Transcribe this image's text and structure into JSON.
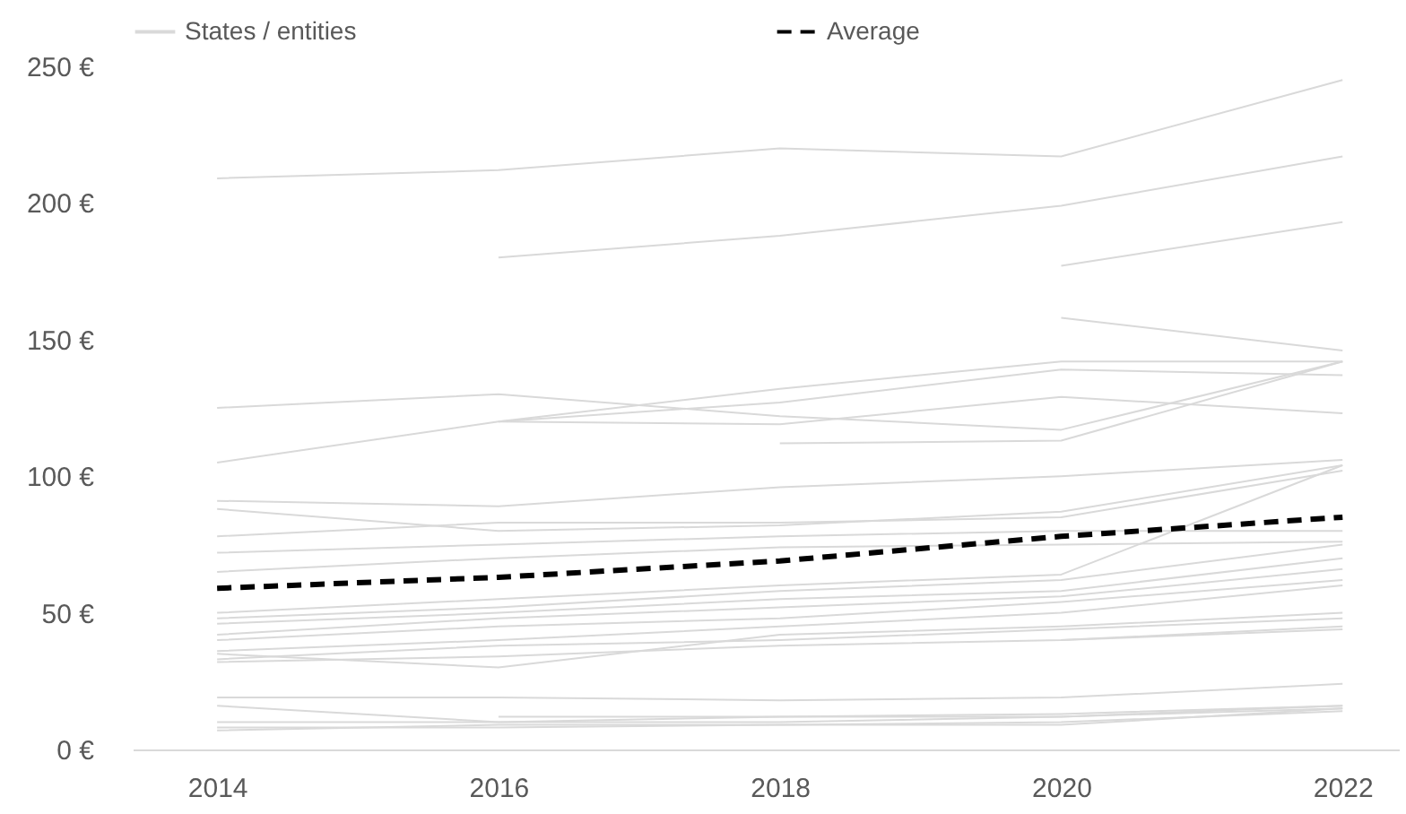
{
  "chart_data": {
    "type": "line",
    "x": [
      2014,
      2016,
      2018,
      2020,
      2022
    ],
    "xlim": [
      2013.4,
      2022.4
    ],
    "xticks": [
      2014,
      2016,
      2018,
      2020,
      2022
    ],
    "ylim": [
      0,
      250
    ],
    "yticks": [
      {
        "value": 0,
        "label": "0 €"
      },
      {
        "value": 50,
        "label": "50 €"
      },
      {
        "value": 100,
        "label": "100 €"
      },
      {
        "value": 150,
        "label": "150 €"
      },
      {
        "value": 200,
        "label": "200 €"
      },
      {
        "value": 250,
        "label": "250 €"
      }
    ],
    "grid": false,
    "legend": "top",
    "marker": "none",
    "line_style": "solid",
    "series": [
      {
        "name": "States / entities",
        "color": "#d9d9d9",
        "values": [
          209,
          212,
          220,
          217,
          245
        ]
      },
      {
        "color": "#d9d9d9",
        "values": [
          null,
          180,
          188,
          199,
          217
        ]
      },
      {
        "color": "#d9d9d9",
        "values": [
          null,
          null,
          null,
          177,
          193
        ]
      },
      {
        "color": "#d9d9d9",
        "values": [
          null,
          null,
          null,
          158,
          146
        ]
      },
      {
        "color": "#d9d9d9",
        "values": [
          125,
          130,
          122,
          117,
          142
        ]
      },
      {
        "color": "#d9d9d9",
        "values": [
          105,
          120,
          127,
          139,
          137
        ]
      },
      {
        "color": "#d9d9d9",
        "values": [
          null,
          120,
          119,
          129,
          123
        ]
      },
      {
        "color": "#d9d9d9",
        "values": [
          null,
          120,
          132,
          142,
          142
        ]
      },
      {
        "color": "#d9d9d9",
        "values": [
          null,
          null,
          112,
          113,
          142
        ]
      },
      {
        "color": "#d9d9d9",
        "values": [
          91,
          89,
          96,
          100,
          106
        ]
      },
      {
        "color": "#d9d9d9",
        "values": [
          88,
          80,
          82,
          87,
          104
        ]
      },
      {
        "color": "#d9d9d9",
        "values": [
          78,
          83,
          83,
          85,
          102
        ]
      },
      {
        "color": "#d9d9d9",
        "values": [
          72,
          75,
          78,
          80,
          80
        ]
      },
      {
        "color": "#d9d9d9",
        "values": [
          65,
          70,
          74,
          75,
          76
        ]
      },
      {
        "color": "#d9d9d9",
        "values": [
          50,
          55,
          60,
          64,
          104
        ]
      },
      {
        "color": "#d9d9d9",
        "values": [
          48,
          52,
          58,
          62,
          75
        ]
      },
      {
        "color": "#d9d9d9",
        "values": [
          46,
          50,
          55,
          58,
          70
        ]
      },
      {
        "color": "#d9d9d9",
        "values": [
          42,
          48,
          52,
          56,
          66
        ]
      },
      {
        "color": "#d9d9d9",
        "values": [
          40,
          45,
          48,
          54,
          62
        ]
      },
      {
        "color": "#d9d9d9",
        "values": [
          36,
          40,
          45,
          50,
          60
        ]
      },
      {
        "color": "#d9d9d9",
        "values": [
          35,
          30,
          42,
          45,
          50
        ]
      },
      {
        "color": "#d9d9d9",
        "values": [
          33,
          38,
          40,
          44,
          48
        ]
      },
      {
        "color": "#d9d9d9",
        "values": [
          32,
          34,
          38,
          40,
          45
        ]
      },
      {
        "color": "#d9d9d9",
        "values": [
          null,
          null,
          null,
          40,
          44
        ]
      },
      {
        "color": "#d9d9d9",
        "values": [
          19,
          19,
          18,
          19,
          24
        ]
      },
      {
        "color": "#d9d9d9",
        "values": [
          16,
          10,
          10,
          12,
          16
        ]
      },
      {
        "color": "#d9d9d9",
        "values": [
          10,
          10,
          12,
          13,
          16
        ]
      },
      {
        "color": "#d9d9d9",
        "values": [
          8,
          8,
          9,
          10,
          14
        ]
      },
      {
        "color": "#d9d9d9",
        "values": [
          null,
          12,
          12,
          12,
          15
        ]
      },
      {
        "color": "#d9d9d9",
        "values": [
          7,
          9,
          9,
          9,
          15
        ]
      },
      {
        "name": "Average",
        "color": "#000000",
        "line_style": "dashed",
        "values": [
          59,
          63,
          69,
          78,
          85
        ]
      }
    ]
  }
}
